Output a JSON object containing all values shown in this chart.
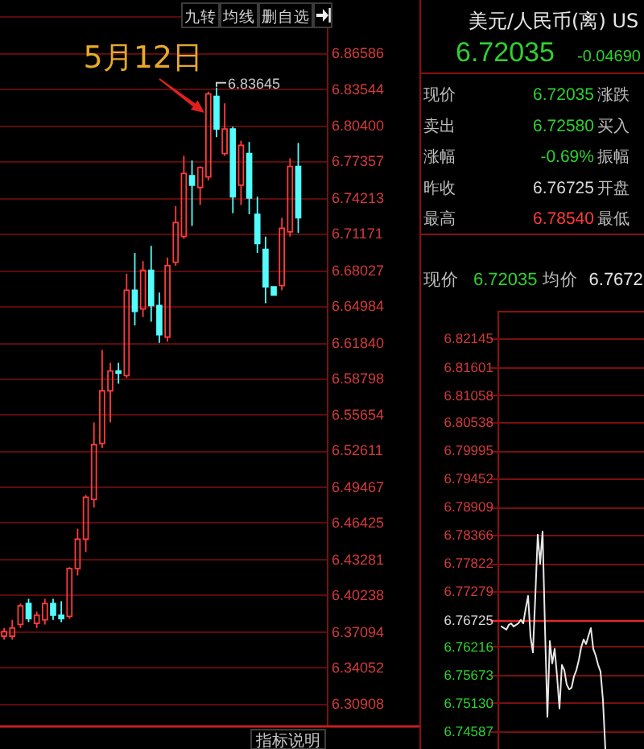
{
  "chart_data": [
    {
      "type": "candlestick",
      "categories": [
        null,
        null,
        null,
        null,
        null,
        null,
        null,
        null,
        null,
        null,
        null,
        null,
        null,
        null,
        null,
        null,
        null,
        null,
        null,
        null,
        null,
        null,
        null,
        null,
        null,
        null,
        null,
        null,
        null,
        null,
        null,
        null,
        null,
        null,
        null,
        null,
        null,
        null,
        null,
        null
      ],
      "ohlc": [
        [
          6.367,
          6.374,
          6.364,
          6.371
        ],
        [
          6.367,
          6.381,
          6.364,
          6.374
        ],
        [
          6.377,
          6.395,
          6.374,
          6.393
        ],
        [
          6.395,
          6.399,
          6.379,
          6.382
        ],
        [
          6.378,
          6.388,
          6.374,
          6.385
        ],
        [
          6.381,
          6.399,
          6.377,
          6.395
        ],
        [
          6.395,
          6.399,
          6.381,
          6.385
        ],
        [
          6.385,
          6.397,
          6.379,
          6.382
        ],
        [
          6.384,
          6.426,
          6.382,
          6.425
        ],
        [
          6.425,
          6.459,
          6.419,
          6.45
        ],
        [
          6.45,
          6.488,
          6.439,
          6.486
        ],
        [
          6.484,
          6.55,
          6.477,
          6.531
        ],
        [
          6.532,
          6.612,
          6.528,
          6.577
        ],
        [
          6.577,
          6.601,
          6.55,
          6.594
        ],
        [
          6.594,
          6.601,
          6.583,
          6.592
        ],
        [
          6.59,
          6.677,
          6.588,
          6.663
        ],
        [
          6.663,
          6.695,
          6.633,
          6.645
        ],
        [
          6.647,
          6.688,
          6.64,
          6.68
        ],
        [
          6.68,
          6.701,
          6.636,
          6.65
        ],
        [
          6.65,
          6.661,
          6.618,
          6.625
        ],
        [
          6.623,
          6.691,
          6.619,
          6.684
        ],
        [
          6.687,
          6.735,
          6.684,
          6.721
        ],
        [
          6.709,
          6.778,
          6.707,
          6.763
        ],
        [
          6.761,
          6.774,
          6.718,
          6.753
        ],
        [
          6.751,
          6.769,
          6.736,
          6.768
        ],
        [
          6.76,
          6.833,
          6.757,
          6.831
        ],
        [
          6.829,
          6.83645,
          6.794,
          6.801
        ],
        [
          6.78,
          6.823,
          6.778,
          6.801
        ],
        [
          6.801,
          6.803,
          6.729,
          6.743
        ],
        [
          6.753,
          6.791,
          6.736,
          6.787
        ],
        [
          6.78,
          6.79,
          6.728,
          6.742
        ],
        [
          6.728,
          6.743,
          6.695,
          6.703
        ],
        [
          6.698,
          6.709,
          6.652,
          6.666
        ],
        [
          6.666,
          6.666,
          6.659,
          6.659
        ],
        [
          6.667,
          6.725,
          6.663,
          6.716
        ],
        [
          6.713,
          6.776,
          6.709,
          6.769
        ],
        [
          6.769,
          6.789,
          6.712,
          6.725
        ],
        null,
        null,
        null
      ],
      "ylim": [
        6.2898,
        6.8976
      ],
      "yticks": [
        6.30908,
        6.34052,
        6.37094,
        6.40238,
        6.43281,
        6.46425,
        6.49467,
        6.52611,
        6.55654,
        6.58798,
        {
          "value": 6.6184,
          "label": "6.61840"
        },
        6.64984,
        6.68027,
        6.71171,
        6.74213,
        6.77357,
        {
          "value": 6.804,
          "label": "6.80400"
        },
        6.83544,
        6.86586
      ],
      "grid": "y",
      "annotations": [
        "九转",
        "均线",
        "删自选",
        "指标说明",
        "5月12日",
        "6.83645"
      ]
    },
    {
      "type": "other",
      "title": "美元/人民币(离) US",
      "annotations": [
        "6.72035",
        "-0.04690",
        "现价",
        "6.72035",
        "涨跌",
        "卖出",
        "6.72580",
        "买入",
        "涨幅",
        "-0.69%",
        "振幅",
        "昨收",
        "6.76725",
        "开盘",
        "最高",
        "6.78540",
        "最低"
      ]
    },
    {
      "type": "line",
      "categories": [
        null,
        null,
        null,
        null,
        null,
        null,
        null,
        null,
        null,
        null,
        null,
        null,
        null,
        null,
        null,
        null,
        null,
        null,
        null,
        null,
        null,
        null,
        null,
        null,
        null,
        null,
        null,
        null,
        null,
        null,
        null,
        null,
        null,
        null,
        null,
        null,
        null,
        null,
        null,
        null,
        null,
        null,
        null,
        null,
        null,
        null,
        null,
        null,
        null,
        null,
        null,
        null,
        null,
        null,
        null,
        null,
        null,
        null,
        null
      ],
      "series": [
        {
          "color": "#e8e8e8",
          "values": [
            6.766,
            6.7657,
            6.7654,
            6.7663,
            6.7666,
            6.766,
            6.7663,
            6.7666,
            6.7673,
            6.7666,
            6.7694,
            6.7719,
            6.7641,
            6.761,
            6.7719,
            6.7837,
            6.7781,
            6.7843,
            6.7657,
            6.7486,
            6.7632,
            6.7589,
            6.7617,
            6.7564,
            6.7502,
            6.7586,
            6.7576,
            6.7548,
            6.7539,
            6.7542,
            6.7564,
            6.7576,
            6.7595,
            6.762,
            6.7635,
            6.7626,
            6.7642,
            6.7657,
            6.7617,
            6.7604,
            6.7586,
            6.7573,
            6.7518,
            6.7424,
            null,
            null,
            null,
            null,
            null,
            null,
            null,
            null,
            null,
            null,
            null,
            null,
            null,
            null,
            null
          ]
        }
      ],
      "ylim": [
        6.7424,
        6.8268
      ],
      "yticks": [
        6.74587,
        {
          "value": 6.7513,
          "label": "6.75130"
        },
        6.75673,
        6.76216,
        6.76725,
        6.77279,
        6.77822,
        6.78366,
        6.78909,
        6.79452,
        6.79995,
        6.80538,
        6.81058,
        6.81601,
        6.82145
      ],
      "grid": "y",
      "ref_lines": [
        {
          "axis": "y",
          "value": 6.76725,
          "color": "#e02828"
        }
      ],
      "annotations": [
        "现价",
        "6.72035",
        "均价",
        "6.7672"
      ]
    }
  ]
}
